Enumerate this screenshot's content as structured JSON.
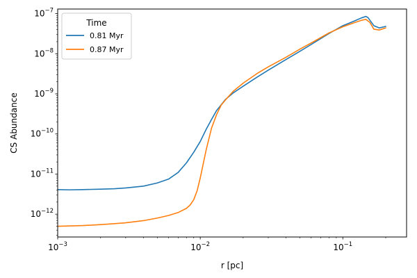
{
  "chart_data": {
    "type": "line",
    "title": "",
    "xlabel": "r [pc]",
    "ylabel": "CS Abundance",
    "xscale": "log",
    "yscale": "log",
    "xlim": [
      0.001,
      0.28
    ],
    "ylim": [
      2.7e-13,
      1.3e-07
    ],
    "x_ticks": [
      {
        "value": 0.001,
        "base": "10",
        "exp": "−3"
      },
      {
        "value": 0.01,
        "base": "10",
        "exp": "−2"
      },
      {
        "value": 0.1,
        "base": "10",
        "exp": "−1"
      }
    ],
    "y_ticks": [
      {
        "value": 1e-12,
        "base": "10",
        "exp": "−12"
      },
      {
        "value": 1e-11,
        "base": "10",
        "exp": "−11"
      },
      {
        "value": 1e-10,
        "base": "10",
        "exp": "−10"
      },
      {
        "value": 1e-09,
        "base": "10",
        "exp": "−9"
      },
      {
        "value": 1e-08,
        "base": "10",
        "exp": "−8"
      },
      {
        "value": 1e-07,
        "base": "10",
        "exp": "−7"
      }
    ],
    "legend": {
      "title": "Time",
      "position": "upper-left",
      "entries": [
        "0.81 Myr",
        "0.87 Myr"
      ]
    },
    "series": [
      {
        "name": "0.81 Myr",
        "color": "#1f77b4",
        "x": [
          0.001,
          0.0012,
          0.0015,
          0.002,
          0.0025,
          0.003,
          0.004,
          0.005,
          0.006,
          0.007,
          0.008,
          0.009,
          0.01,
          0.011,
          0.012,
          0.013,
          0.015,
          0.017,
          0.02,
          0.025,
          0.03,
          0.04,
          0.05,
          0.06,
          0.08,
          0.1,
          0.12,
          0.135,
          0.145,
          0.15,
          0.165,
          0.18,
          0.2
        ],
        "y": [
          4.1e-12,
          4.05e-12,
          4.1e-12,
          4.2e-12,
          4.3e-12,
          4.5e-12,
          5e-12,
          6e-12,
          7.5e-12,
          1.1e-11,
          1.9e-11,
          3.5e-11,
          6.5e-11,
          1.3e-10,
          2.3e-10,
          3.8e-10,
          7.2e-10,
          1.05e-09,
          1.55e-09,
          2.6e-09,
          3.9e-09,
          7.2e-09,
          1.15e-08,
          1.7e-08,
          3.2e-08,
          5e-08,
          6.5e-08,
          7.8e-08,
          8.5e-08,
          8e-08,
          5e-08,
          4.4e-08,
          4.8e-08
        ]
      },
      {
        "name": "0.87 Myr",
        "color": "#ff7f0e",
        "x": [
          0.001,
          0.0015,
          0.002,
          0.0025,
          0.003,
          0.004,
          0.005,
          0.006,
          0.007,
          0.008,
          0.0085,
          0.009,
          0.0095,
          0.01,
          0.011,
          0.012,
          0.013,
          0.014,
          0.015,
          0.017,
          0.02,
          0.025,
          0.03,
          0.04,
          0.05,
          0.06,
          0.08,
          0.1,
          0.12,
          0.135,
          0.145,
          0.155,
          0.165,
          0.18,
          0.2
        ],
        "y": [
          5e-13,
          5.2e-13,
          5.5e-13,
          5.8e-13,
          6.1e-13,
          6.9e-13,
          8e-13,
          9.3e-13,
          1.1e-12,
          1.4e-12,
          1.7e-12,
          2.3e-12,
          3.8e-12,
          8e-12,
          4e-11,
          1.4e-10,
          3e-10,
          5.2e-10,
          7e-10,
          1.15e-09,
          1.85e-09,
          3.2e-09,
          4.7e-09,
          8.2e-09,
          1.3e-08,
          1.85e-08,
          3.3e-08,
          4.7e-08,
          5.9e-08,
          6.8e-08,
          7.2e-08,
          6e-08,
          4.1e-08,
          3.9e-08,
          4.4e-08
        ]
      }
    ]
  }
}
